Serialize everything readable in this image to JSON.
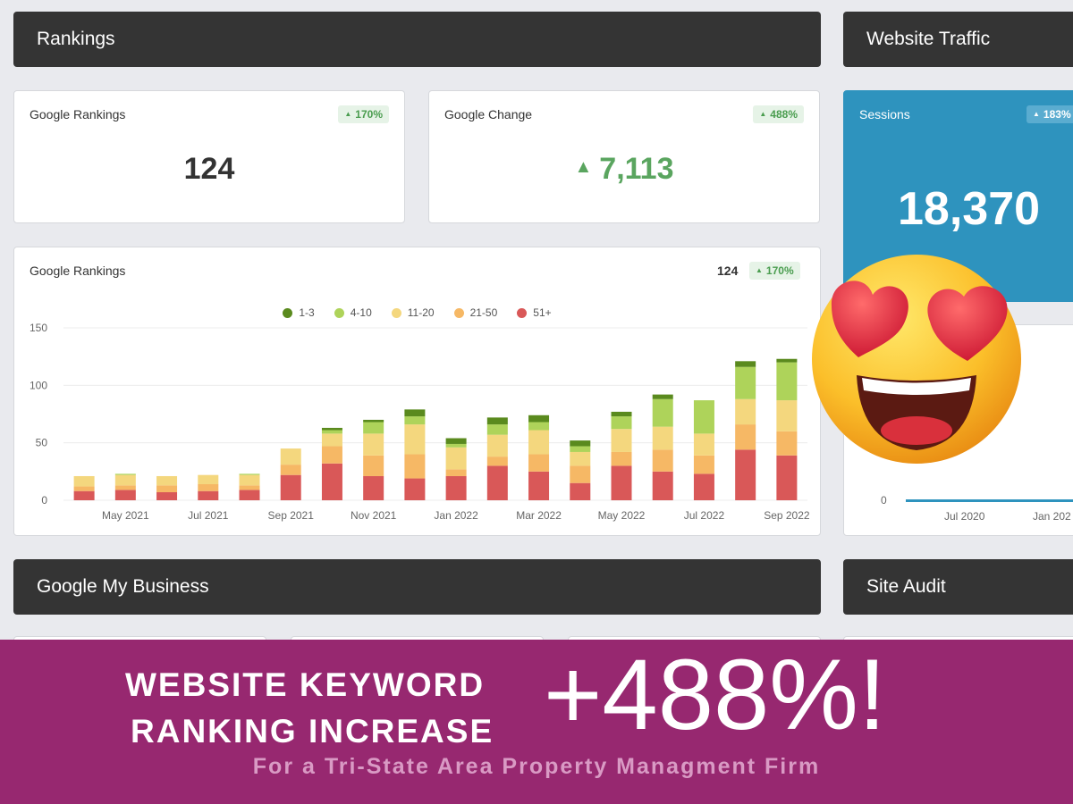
{
  "sections": {
    "rankings": "Rankings",
    "website_traffic": "Website Traffic",
    "google_my_business": "Google My Business",
    "site_audit": "Site Audit"
  },
  "google_rankings_card": {
    "title": "Google Rankings",
    "badge": "170%",
    "value": "124"
  },
  "google_change_card": {
    "title": "Google Change",
    "badge": "488%",
    "value": "7,113"
  },
  "sessions_card": {
    "title": "Sessions",
    "badge": "183%",
    "value": "18,370"
  },
  "rankings_chart_card": {
    "title": "Google Rankings",
    "total": "124",
    "badge": "170%"
  },
  "traffic_chart": {
    "y_tick": "0",
    "x_ticks": [
      "Jul 2020",
      "Jan 202"
    ]
  },
  "colors": {
    "pos_1_3": "#5a8a1e",
    "pos_4_10": "#aed35a",
    "pos_11_20": "#f4d77e",
    "pos_21_50": "#f6b865",
    "pos_51_plus": "#d95858",
    "header_bg": "#343434",
    "sessions_bg": "#2e93be",
    "banner_bg": "#972870"
  },
  "chart_data": {
    "type": "bar",
    "stacked": true,
    "title": "",
    "xlabel": "",
    "ylabel": "",
    "ylim": [
      0,
      150
    ],
    "y_ticks": [
      0,
      50,
      100,
      150
    ],
    "x_tick_labels": [
      "May 2021",
      "Jul 2021",
      "Sep 2021",
      "Nov 2021",
      "Jan 2022",
      "Mar 2022",
      "May 2022",
      "Jul 2022",
      "Sep 2022"
    ],
    "categories": [
      "Apr 2021",
      "May 2021",
      "Jun 2021",
      "Jul 2021",
      "Aug 2021",
      "Sep 2021",
      "Oct 2021",
      "Nov 2021",
      "Dec 2021",
      "Jan 2022",
      "Feb 2022",
      "Mar 2022",
      "Apr 2022",
      "May 2022",
      "Jun 2022",
      "Jul 2022",
      "Aug 2022",
      "Sep 2022"
    ],
    "legend_position": "top-center",
    "grid": true,
    "series": [
      {
        "name": "51+",
        "color": "#d95858",
        "values": [
          8,
          9,
          7,
          8,
          9,
          22,
          32,
          21,
          19,
          21,
          30,
          25,
          15,
          30,
          25,
          23,
          44,
          39
        ]
      },
      {
        "name": "21-50",
        "color": "#f6b865",
        "values": [
          4,
          4,
          6,
          6,
          4,
          9,
          15,
          18,
          21,
          6,
          8,
          15,
          15,
          12,
          19,
          16,
          22,
          21
        ]
      },
      {
        "name": "11-20",
        "color": "#f4d77e",
        "values": [
          9,
          9,
          8,
          8,
          9,
          14,
          11,
          19,
          26,
          19,
          19,
          21,
          12,
          20,
          20,
          19,
          22,
          27
        ]
      },
      {
        "name": "4-10",
        "color": "#aed35a",
        "values": [
          0,
          1,
          0,
          0,
          1,
          0,
          3,
          10,
          7,
          3,
          9,
          7,
          5,
          11,
          24,
          29,
          28,
          33
        ]
      },
      {
        "name": "1-3",
        "color": "#5a8a1e",
        "values": [
          0,
          0,
          0,
          0,
          0,
          0,
          2,
          2,
          6,
          5,
          6,
          6,
          5,
          4,
          4,
          0,
          5,
          3
        ]
      }
    ]
  },
  "banner": {
    "line1": "WEBSITE KEYWORD",
    "line2": "RANKING INCREASE",
    "big": "+488%!",
    "sub": "For a Tri-State Area Property Managment Firm"
  },
  "emoji_name": "smiling-face-with-heart-eyes-icon"
}
